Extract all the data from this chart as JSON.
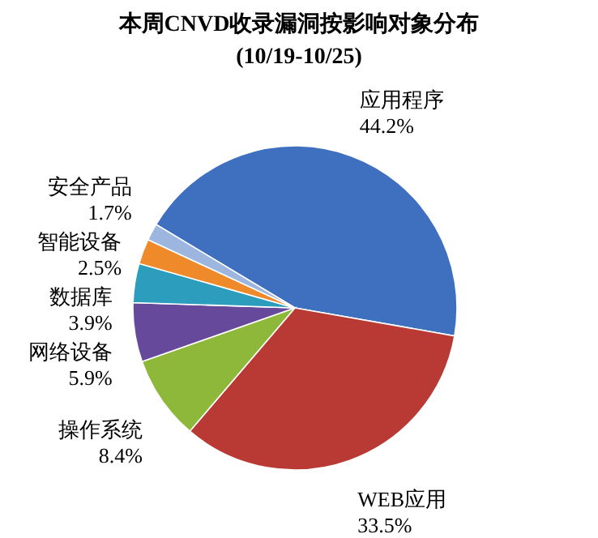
{
  "chart_data": {
    "type": "pie",
    "title": "本周CNVD收录漏洞按影响对象分布",
    "subtitle": "(10/19-10/25)",
    "categories": [
      "应用程序",
      "WEB应用",
      "操作系统",
      "网络设备",
      "数据库",
      "智能设备",
      "安全产品"
    ],
    "values": [
      44.2,
      33.5,
      8.4,
      5.9,
      3.9,
      2.5,
      1.7
    ],
    "colors": [
      "#3f6fbf",
      "#b93a34",
      "#8db83a",
      "#66499a",
      "#2d9dbd",
      "#ef8a2a",
      "#9cb6df"
    ],
    "value_labels": [
      "44.2%",
      "33.5%",
      "8.4%",
      "5.9%",
      "3.9%",
      "2.5%",
      "1.7%"
    ],
    "legend": false
  }
}
